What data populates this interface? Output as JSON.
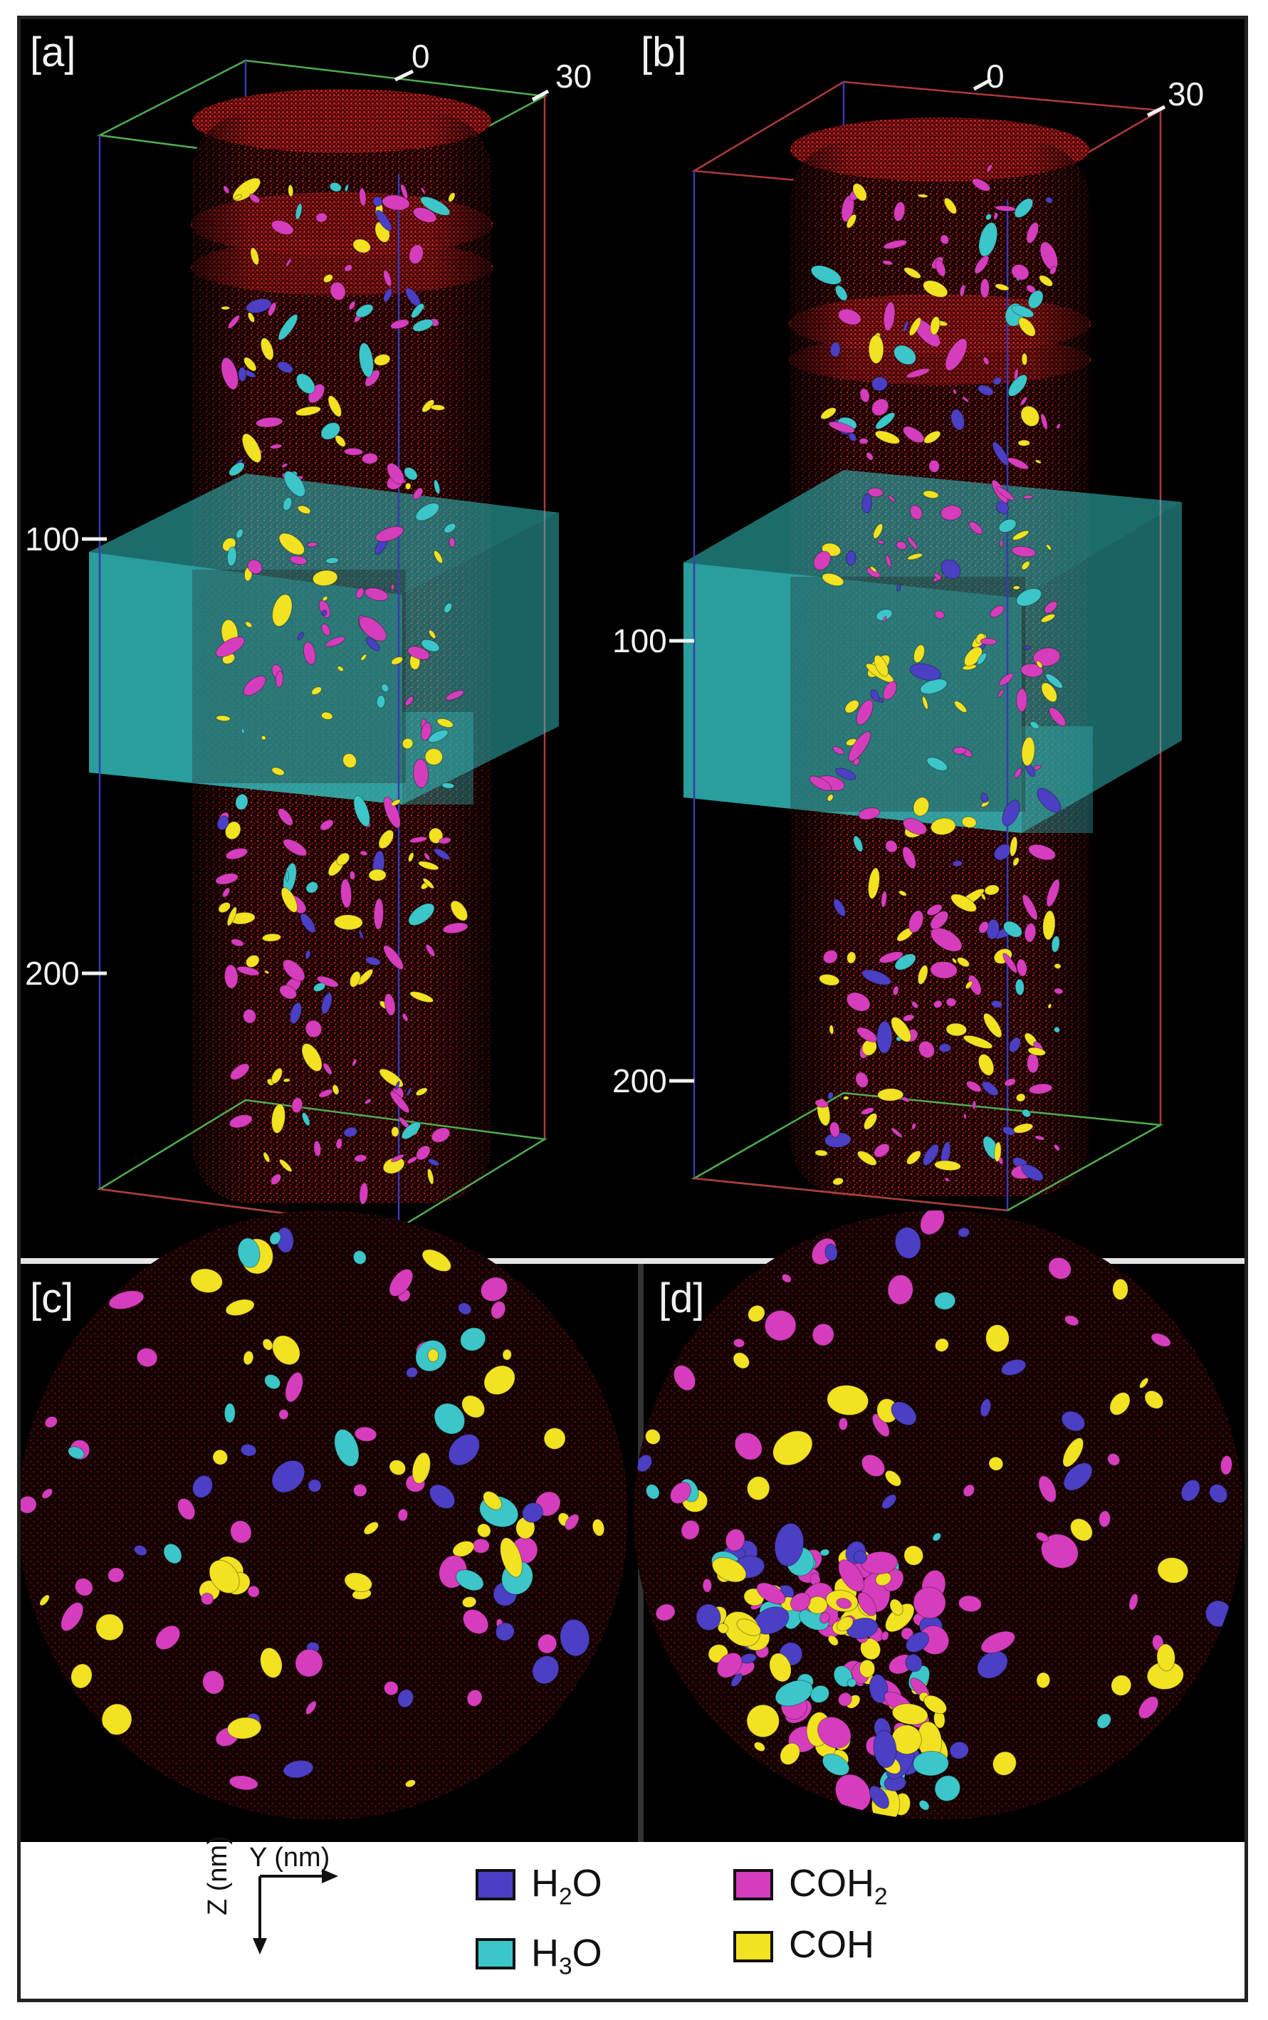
{
  "panels": {
    "a": {
      "label": "[a]",
      "top_ticks": [
        "0",
        "30"
      ],
      "left_ticks": [
        "100",
        "200"
      ]
    },
    "b": {
      "label": "[b]",
      "top_ticks": [
        "0",
        "30"
      ],
      "left_ticks": [
        "100",
        "200"
      ]
    },
    "c": {
      "label": "[c]"
    },
    "d": {
      "label": "[d]"
    }
  },
  "legend": {
    "axes": {
      "y_label": "Y (nm)",
      "z_label": "Z (nm)"
    },
    "items": [
      {
        "id": "h2o",
        "base": "H",
        "sub": "2",
        "tail": "O",
        "color": "#4b3fc4"
      },
      {
        "id": "h3o",
        "base": "H",
        "sub": "3",
        "tail": "O",
        "color": "#3cc6c9"
      },
      {
        "id": "coh2",
        "base": "COH",
        "sub": "2",
        "tail": "",
        "color": "#d63dbd"
      },
      {
        "id": "coh",
        "base": "COH",
        "sub": "",
        "tail": "",
        "color": "#f2e222"
      }
    ]
  },
  "colors": {
    "background": "#000000",
    "atoms_red": "#b01a1a",
    "slab_cyan": "#35c4c4",
    "box_blue": "#3a3ab0",
    "box_green": "#4fae4f",
    "box_red": "#b03a3a"
  }
}
